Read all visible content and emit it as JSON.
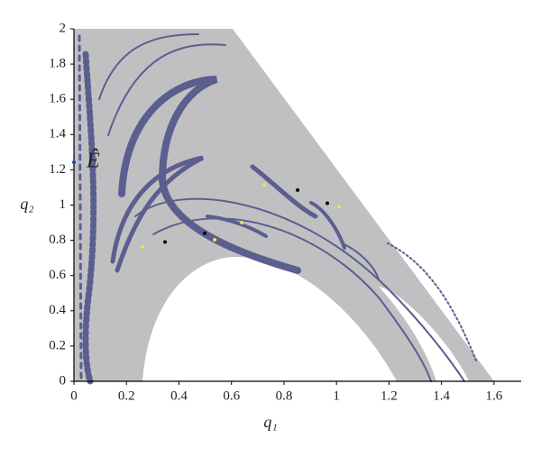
{
  "chart_data": {
    "type": "scatter",
    "x_label": "q₁",
    "y_label": "q₂",
    "annotations": [
      "Ê"
    ],
    "xlim": [
      0,
      1.7
    ],
    "ylim": [
      0,
      2
    ],
    "xticks": [
      0,
      0.2,
      0.4,
      0.6,
      0.8,
      1,
      1.2,
      1.4,
      1.6
    ],
    "yticks": [
      0,
      0.2,
      0.4,
      0.6,
      0.8,
      1,
      1.2,
      1.4,
      1.6,
      1.8,
      2
    ],
    "series": [
      {
        "color": "#000000",
        "x": [
          0.347,
          0.498,
          0.852,
          0.965
        ],
        "values": [
          0.79,
          0.84,
          1.085,
          1.01
        ]
      },
      {
        "color": "#e6e64a",
        "x": [
          0.261,
          0.536,
          0.639,
          0.725,
          1.01
        ],
        "values": [
          0.762,
          0.803,
          0.9,
          1.115,
          0.99
        ]
      },
      {
        "color": "#1a3fd0",
        "x": [
          0
        ],
        "values": [
          1.243
        ]
      }
    ]
  }
}
